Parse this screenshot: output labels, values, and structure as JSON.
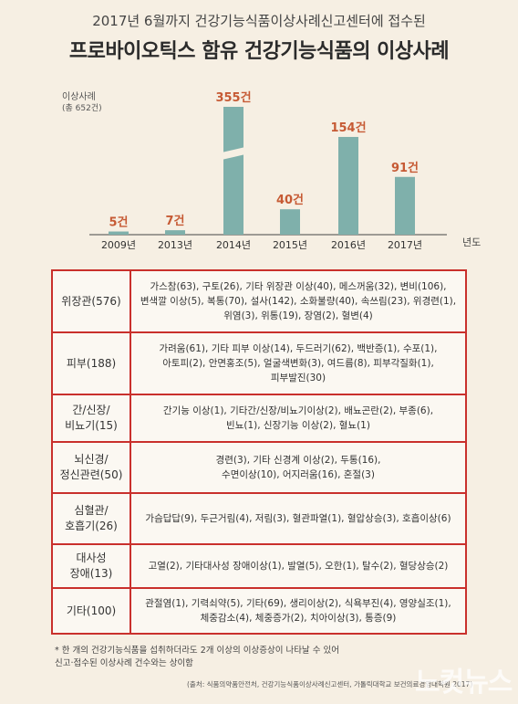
{
  "header": {
    "subtitle": "2017년 6월까지 건강기능식품이상사례신고센터에 접수된",
    "title": "프로바이오틱스 함유 건강기능식품의 이상사례"
  },
  "chart_data": {
    "type": "bar",
    "ylabel": "이상사례",
    "ylabel_note": "(총 652건)",
    "xlabel": "년도",
    "categories": [
      "2009년",
      "2013년",
      "2014년",
      "2015년",
      "2016년",
      "2017년"
    ],
    "values": [
      5,
      7,
      355,
      40,
      154,
      91
    ],
    "value_labels": [
      "5건",
      "7건",
      "355건",
      "40건",
      "154건",
      "91건"
    ],
    "broken_axis_category": "2014년",
    "bar_color": "#7fb0ab",
    "label_color": "#c65a34"
  },
  "table": {
    "rows": [
      {
        "category": "위장관(576)",
        "items": "가스참(63), 구토(26), 기타 위장관 이상(40), 메스꺼움(32), 변비(106),\n변색깔 이상(5), 복통(70), 설사(142), 소화불량(40), 속쓰림(23), 위경련(1),\n위염(3), 위통(19), 장염(2), 혈변(4)"
      },
      {
        "category": "피부(188)",
        "items": "가려움(61), 기타 피부 이상(14), 두드러기(62), 백반증(1), 수포(1),\n아토피(2), 안면홍조(5), 얼굴색변화(3), 여드름(8), 피부각질화(1),\n피부발진(30)"
      },
      {
        "category": "간/신장/\n비뇨기(15)",
        "items": "간기능 이상(1), 기타간/신장/비뇨기이상(2), 배뇨곤란(2), 부종(6),\n빈뇨(1), 신장기능 이상(2), 혈뇨(1)"
      },
      {
        "category": "뇌신경/\n정신관련(50)",
        "items": "경련(3), 기타 신경계 이상(2), 두통(16),\n수면이상(10), 어지러움(16), 혼절(3)"
      },
      {
        "category": "심혈관/\n호흡기(26)",
        "items": "가슴답답(9), 두근거림(4), 저림(3), 혈관파열(1), 혈압상승(3), 호흡이상(6)"
      },
      {
        "category": "대사성\n장애(13)",
        "items": "고열(2), 기타대사성 장애이상(1), 발열(5), 오한(1), 탈수(2), 혈당상승(2)"
      },
      {
        "category": "기타(100)",
        "items": "관절염(1), 기력쇠약(5), 기타(69), 생리이상(2), 식욕부진(4), 영양실조(1),\n체중감소(4), 체중증가(2), 치아이상(3), 통증(9)"
      }
    ]
  },
  "footnote": {
    "line1": "* 한 개의 건강기능식품을 섭취하더라도 2개 이상의 이상증상이 나타날 수 있어",
    "line2": "  신고·접수된 이상사례 건수와는 상이함",
    "source": "(출처: 식품의약품안전처, 건강기능식품이상사례신고센터, 가톨릭대학교 보건의료경영대학원 2017)"
  },
  "watermark": "노컷뉴스"
}
